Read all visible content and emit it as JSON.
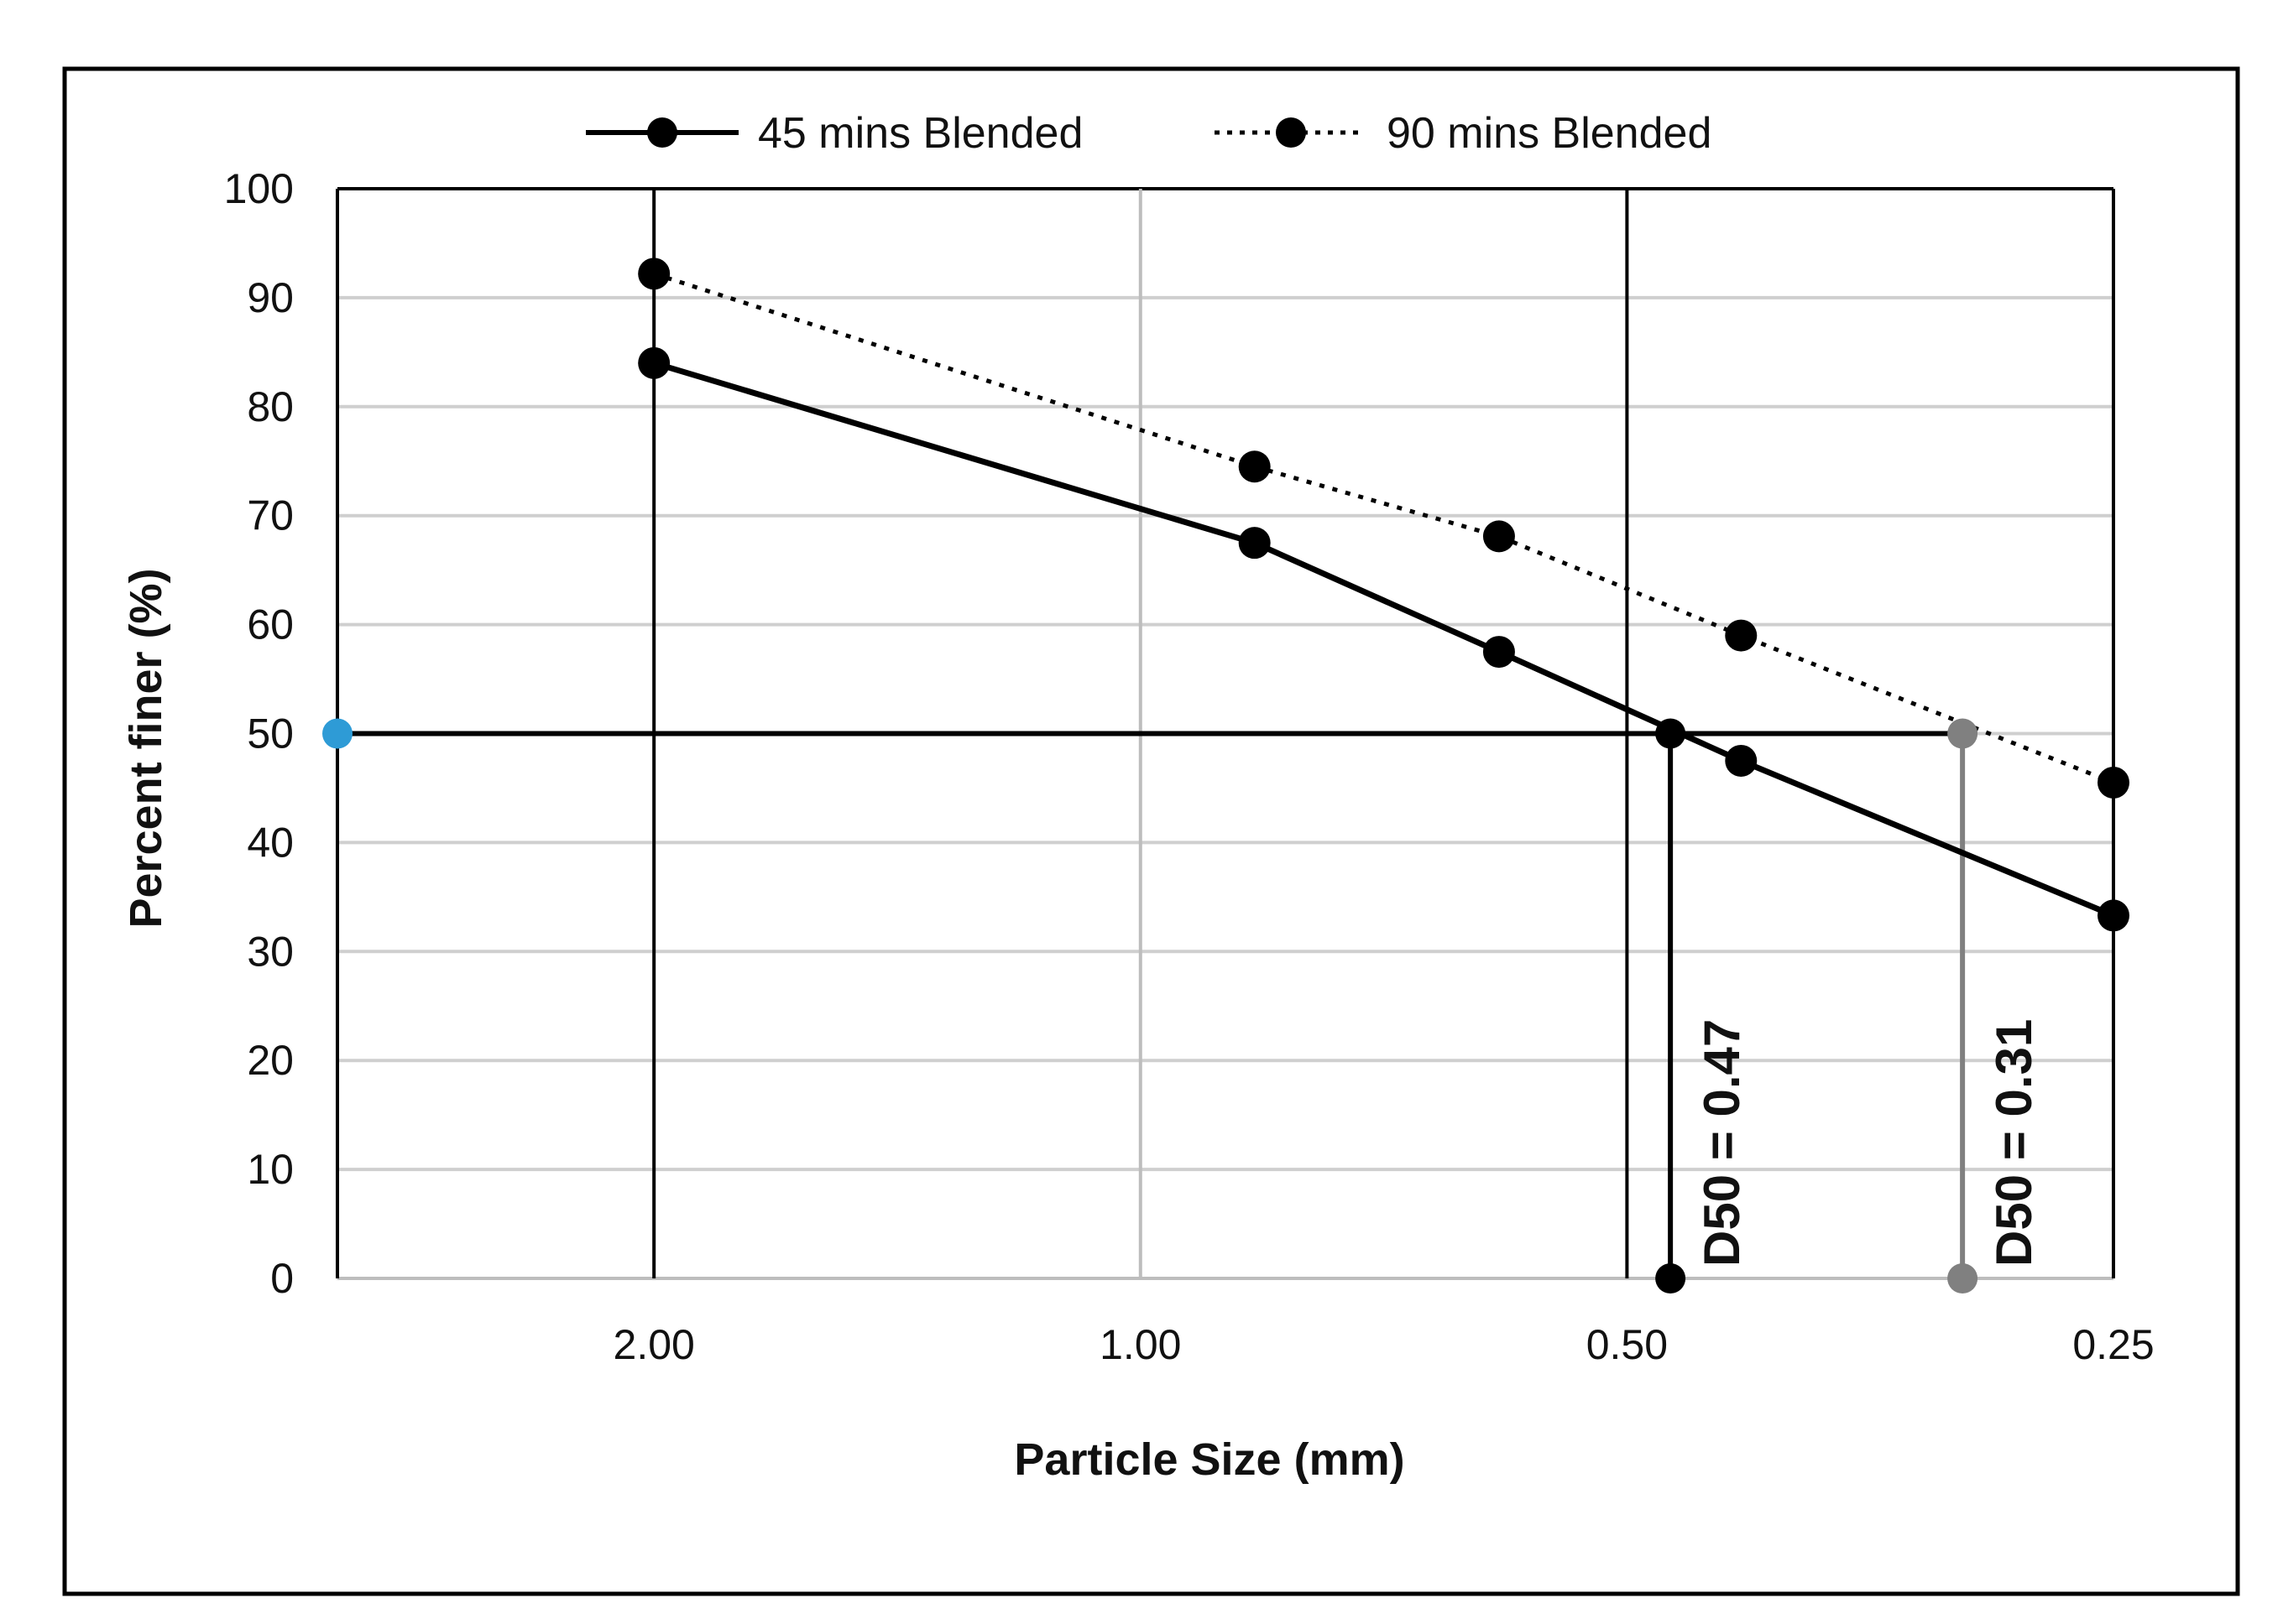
{
  "chart_data": {
    "type": "line",
    "title": "",
    "xlabel": "Particle Size (mm)",
    "ylabel": "Percent finer (%)",
    "x_scale": "log",
    "x_reversed": true,
    "xlim": [
      3.14,
      0.25
    ],
    "ylim": [
      0,
      100
    ],
    "x_ticks": [
      2.0,
      1.0,
      0.5,
      0.25
    ],
    "x_tick_labels": [
      "2.00",
      "1.00",
      "0.50",
      "0.25"
    ],
    "y_ticks": [
      0,
      10,
      20,
      30,
      40,
      50,
      60,
      70,
      80,
      90,
      100
    ],
    "y_tick_labels": [
      "0",
      "10",
      "20",
      "30",
      "40",
      "50",
      "60",
      "70",
      "80",
      "90",
      "100"
    ],
    "grid": true,
    "legend_position": "top",
    "series": [
      {
        "name": "45 mins Blended",
        "style": "solid",
        "color": "#000000",
        "x": [
          2.0,
          0.85,
          0.6,
          0.425,
          0.25
        ],
        "y": [
          84,
          67.5,
          57.5,
          47.5,
          33.3
        ]
      },
      {
        "name": "90 mins Blended",
        "style": "dotted",
        "color": "#000000",
        "x": [
          2.0,
          0.85,
          0.6,
          0.425,
          0.25
        ],
        "y": [
          92.2,
          74.5,
          68.1,
          59.0,
          45.5
        ]
      }
    ],
    "reference_lines": {
      "vertical_black": [
        2.0,
        0.5,
        0.25
      ],
      "vertical_gray": [
        1.0
      ],
      "d50_horizontal": 50,
      "d50_marker_color": "#2E9BD6",
      "d50_45_color": "#000000",
      "d50_90_color": "#808080"
    },
    "annotations": [
      {
        "text": "D50 = 0.47",
        "x": 0.47,
        "y": 50
      },
      {
        "text": "D50 = 0.31",
        "x": 0.31,
        "y": 50
      }
    ]
  }
}
